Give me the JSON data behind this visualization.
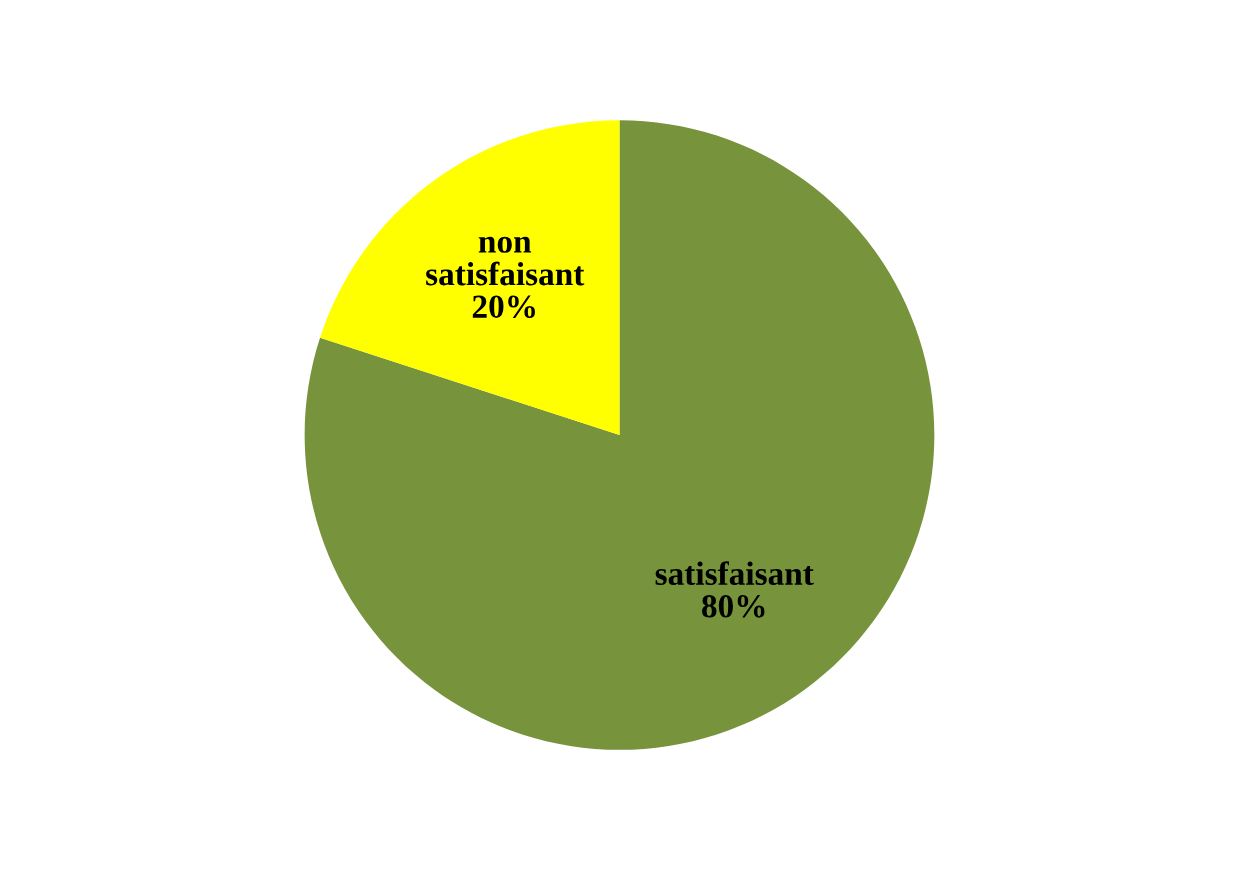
{
  "chart_data": {
    "type": "pie",
    "categories": [
      "satisfaisant",
      "non satisfaisant"
    ],
    "values": [
      80,
      20
    ],
    "value_labels": [
      "80%",
      "20%"
    ],
    "colors": [
      "#77933c",
      "#ffff00"
    ]
  }
}
